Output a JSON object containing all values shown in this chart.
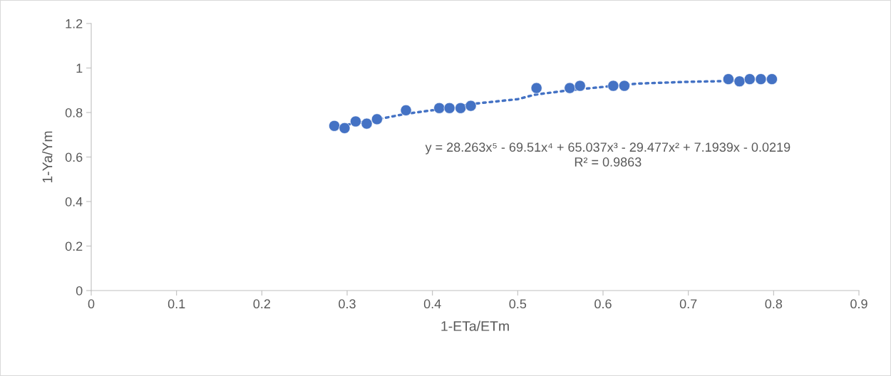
{
  "chart_data": {
    "type": "scatter",
    "xlabel": "1-ETa/ETm",
    "ylabel": "1-Ya/Ym",
    "xlim": [
      0,
      0.9
    ],
    "xticks": [
      0,
      0.1,
      0.2,
      0.3,
      0.4,
      0.5,
      0.6,
      0.7,
      0.8,
      0.9
    ],
    "ylim": [
      0,
      1.2
    ],
    "yticks": [
      0,
      0.2,
      0.4,
      0.6,
      0.8,
      1,
      1.2
    ],
    "grid": false,
    "legend": false,
    "series": [
      {
        "color": "#4472c4",
        "marker": "circle",
        "x": [
          0.285,
          0.297,
          0.31,
          0.323,
          0.335,
          0.369,
          0.408,
          0.42,
          0.433,
          0.445,
          0.522,
          0.561,
          0.573,
          0.612,
          0.625,
          0.747,
          0.76,
          0.772,
          0.785,
          0.798
        ],
        "values": [
          0.74,
          0.73,
          0.76,
          0.75,
          0.77,
          0.81,
          0.82,
          0.82,
          0.82,
          0.83,
          0.91,
          0.91,
          0.92,
          0.92,
          0.92,
          0.95,
          0.94,
          0.95,
          0.95,
          0.95
        ]
      },
      {
        "type": "line",
        "color": "#4472c4",
        "line_style": "dotted",
        "marker": "none",
        "x": [
          0.285,
          0.33,
          0.37,
          0.41,
          0.45,
          0.5,
          0.52,
          0.56,
          0.6,
          0.64,
          0.7,
          0.74,
          0.798
        ],
        "values": [
          0.735,
          0.765,
          0.795,
          0.815,
          0.84,
          0.86,
          0.88,
          0.9,
          0.915,
          0.93,
          0.938,
          0.941,
          0.952
        ]
      }
    ],
    "annotations": [
      "y = 28.263x⁵ - 69.51x⁴ + 65.037x³ - 29.477x² + 7.1939x - 0.0219\nR² = 0.9863"
    ]
  }
}
